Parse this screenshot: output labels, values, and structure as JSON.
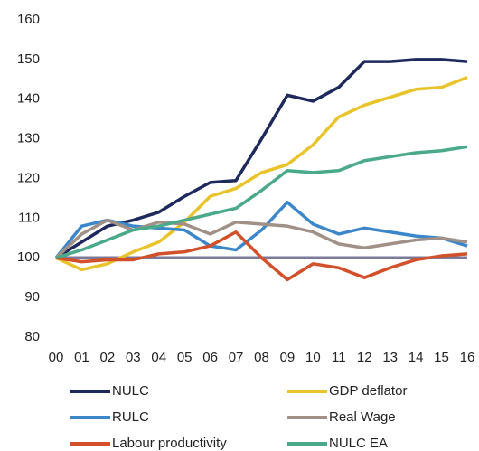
{
  "chart_data": {
    "type": "line",
    "categories": [
      "00",
      "01",
      "02",
      "03",
      "04",
      "05",
      "06",
      "07",
      "08",
      "09",
      "10",
      "11",
      "12",
      "13",
      "14",
      "15",
      "16"
    ],
    "ylim": [
      80,
      160
    ],
    "yticks": [
      80,
      90,
      100,
      110,
      120,
      130,
      140,
      150,
      160
    ],
    "series": [
      {
        "name": "NULC",
        "color": "#1f2a5c",
        "values": [
          100,
          104,
          108,
          109.5,
          111.5,
          115.5,
          119,
          119.5,
          130,
          141,
          139.5,
          143,
          149.5,
          149.5,
          150,
          150,
          149.5
        ]
      },
      {
        "name": "GDP deflator",
        "color": "#e8c32a",
        "values": [
          100,
          97,
          98.5,
          101.5,
          104,
          109,
          115.5,
          117.5,
          121.5,
          123.5,
          128.5,
          135.5,
          138.5,
          140.5,
          142.5,
          143,
          145.5
        ]
      },
      {
        "name": "RULC",
        "color": "#3b87c9",
        "values": [
          100,
          108,
          109.5,
          108,
          107.5,
          107,
          103,
          102,
          107,
          114,
          108.5,
          106,
          107.5,
          106.5,
          105.5,
          105,
          103
        ]
      },
      {
        "name": "Real Wage",
        "color": "#a09086",
        "values": [
          100,
          106,
          109.5,
          107,
          109,
          108.5,
          106,
          109,
          108.5,
          108,
          106.5,
          103.5,
          102.5,
          103.5,
          104.5,
          105,
          104
        ]
      },
      {
        "name": "Labour productivity",
        "color": "#d2502a",
        "values": [
          100,
          99,
          99.5,
          99.5,
          101,
          101.5,
          103,
          106.5,
          100,
          94.5,
          98.5,
          97.5,
          95,
          97.5,
          99.5,
          100.5,
          101
        ]
      },
      {
        "name": "NULC EA",
        "color": "#4aa98a",
        "values": [
          100,
          102,
          104.5,
          107,
          108,
          109.5,
          111,
          112.5,
          117,
          122,
          121.5,
          122,
          124.5,
          125.5,
          126.5,
          127,
          128
        ]
      },
      {
        "color": "#7a7a9a",
        "values": [
          100,
          100,
          100,
          100,
          100,
          100,
          100,
          100,
          100,
          100,
          100,
          100,
          100,
          100,
          100,
          100,
          100
        ]
      }
    ]
  }
}
